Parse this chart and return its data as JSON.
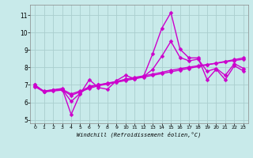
{
  "title": "",
  "xlabel": "Windchill (Refroidissement éolien,°C)",
  "ylabel": "",
  "bg_color": "#c8eaea",
  "line_color": "#cc00cc",
  "markersize": 2.5,
  "linewidth": 1.0,
  "xlim": [
    -0.5,
    23.5
  ],
  "ylim": [
    4.8,
    11.6
  ],
  "xticks": [
    0,
    1,
    2,
    3,
    4,
    5,
    6,
    7,
    8,
    9,
    10,
    11,
    12,
    13,
    14,
    15,
    16,
    17,
    18,
    19,
    20,
    21,
    22,
    23
  ],
  "yticks": [
    5,
    6,
    7,
    8,
    9,
    10,
    11
  ],
  "grid_color": "#aacece",
  "line1_x": [
    0,
    1,
    2,
    3,
    4,
    5,
    6,
    7,
    8,
    9,
    10,
    11,
    12,
    13,
    14,
    15,
    16,
    17,
    18,
    19,
    20,
    21,
    22,
    23
  ],
  "line1_y": [
    7.0,
    6.6,
    6.7,
    6.8,
    5.3,
    6.5,
    7.3,
    6.85,
    6.75,
    7.25,
    7.55,
    7.35,
    7.5,
    8.8,
    10.25,
    11.15,
    9.05,
    8.55,
    8.55,
    7.3,
    7.9,
    7.3,
    8.1,
    7.8
  ],
  "line2_x": [
    0,
    1,
    2,
    3,
    4,
    5,
    6,
    7,
    8,
    9,
    10,
    11,
    12,
    13,
    14,
    15,
    16,
    17,
    18,
    19,
    20,
    21,
    22,
    23
  ],
  "line2_y": [
    6.9,
    6.6,
    6.65,
    6.7,
    6.4,
    6.6,
    6.8,
    6.95,
    7.05,
    7.15,
    7.25,
    7.35,
    7.45,
    7.55,
    7.65,
    7.75,
    7.85,
    7.95,
    8.05,
    8.15,
    8.25,
    8.35,
    8.45,
    8.55
  ],
  "line3_x": [
    0,
    1,
    2,
    3,
    4,
    5,
    6,
    7,
    8,
    9,
    10,
    11,
    12,
    13,
    14,
    15,
    16,
    17,
    18,
    19,
    20,
    21,
    22,
    23
  ],
  "line3_y": [
    6.95,
    6.65,
    6.72,
    6.75,
    6.48,
    6.65,
    6.88,
    7.0,
    7.1,
    7.2,
    7.32,
    7.43,
    7.52,
    7.62,
    7.72,
    7.84,
    7.93,
    8.02,
    8.1,
    8.17,
    8.24,
    8.32,
    8.4,
    8.47
  ],
  "line4_x": [
    0,
    1,
    2,
    3,
    4,
    5,
    6,
    7,
    8,
    9,
    10,
    11,
    12,
    13,
    14,
    15,
    16,
    17,
    18,
    19,
    20,
    21,
    22,
    23
  ],
  "line4_y": [
    7.0,
    6.62,
    6.72,
    6.75,
    6.05,
    6.52,
    6.92,
    7.0,
    7.08,
    7.18,
    7.32,
    7.38,
    7.48,
    7.9,
    8.65,
    9.5,
    8.58,
    8.38,
    8.48,
    7.78,
    7.95,
    7.55,
    8.22,
    7.95
  ]
}
